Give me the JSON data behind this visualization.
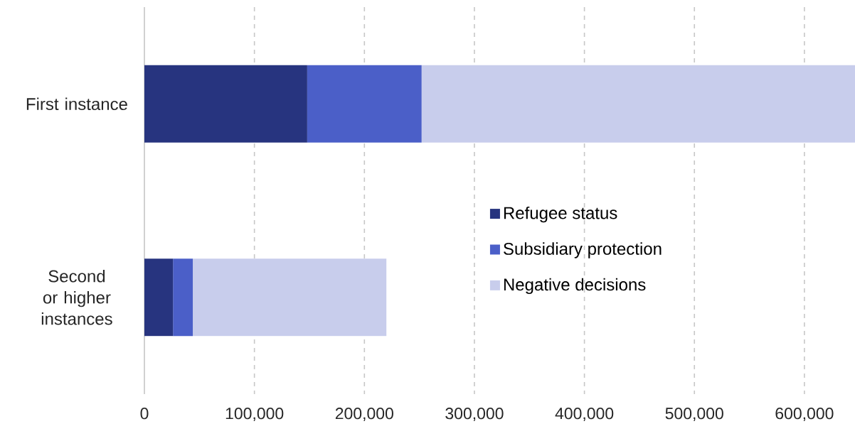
{
  "chart_data": {
    "type": "bar",
    "orientation": "horizontal",
    "stacked": true,
    "categories": [
      "First instance",
      "Second or higher instances"
    ],
    "series": [
      {
        "name": "Refugee status",
        "color": "#27347f",
        "values": [
          148000,
          26000
        ]
      },
      {
        "name": "Subsidiary protection",
        "color": "#4b5fc8",
        "values": [
          104000,
          18000
        ]
      },
      {
        "name": "Negative decisions",
        "color": "#c8cdec",
        "values": [
          394000,
          176000
        ]
      }
    ],
    "xlim": [
      0,
      646000
    ],
    "xticks": [
      {
        "value": 0,
        "label": "0"
      },
      {
        "value": 100000,
        "label": "100,000"
      },
      {
        "value": 200000,
        "label": "200,000"
      },
      {
        "value": 300000,
        "label": "300,000"
      },
      {
        "value": 400000,
        "label": "400,000"
      },
      {
        "value": 500000,
        "label": "500,000"
      },
      {
        "value": 600000,
        "label": "600,000"
      }
    ],
    "grid": "x",
    "legend": "right"
  }
}
